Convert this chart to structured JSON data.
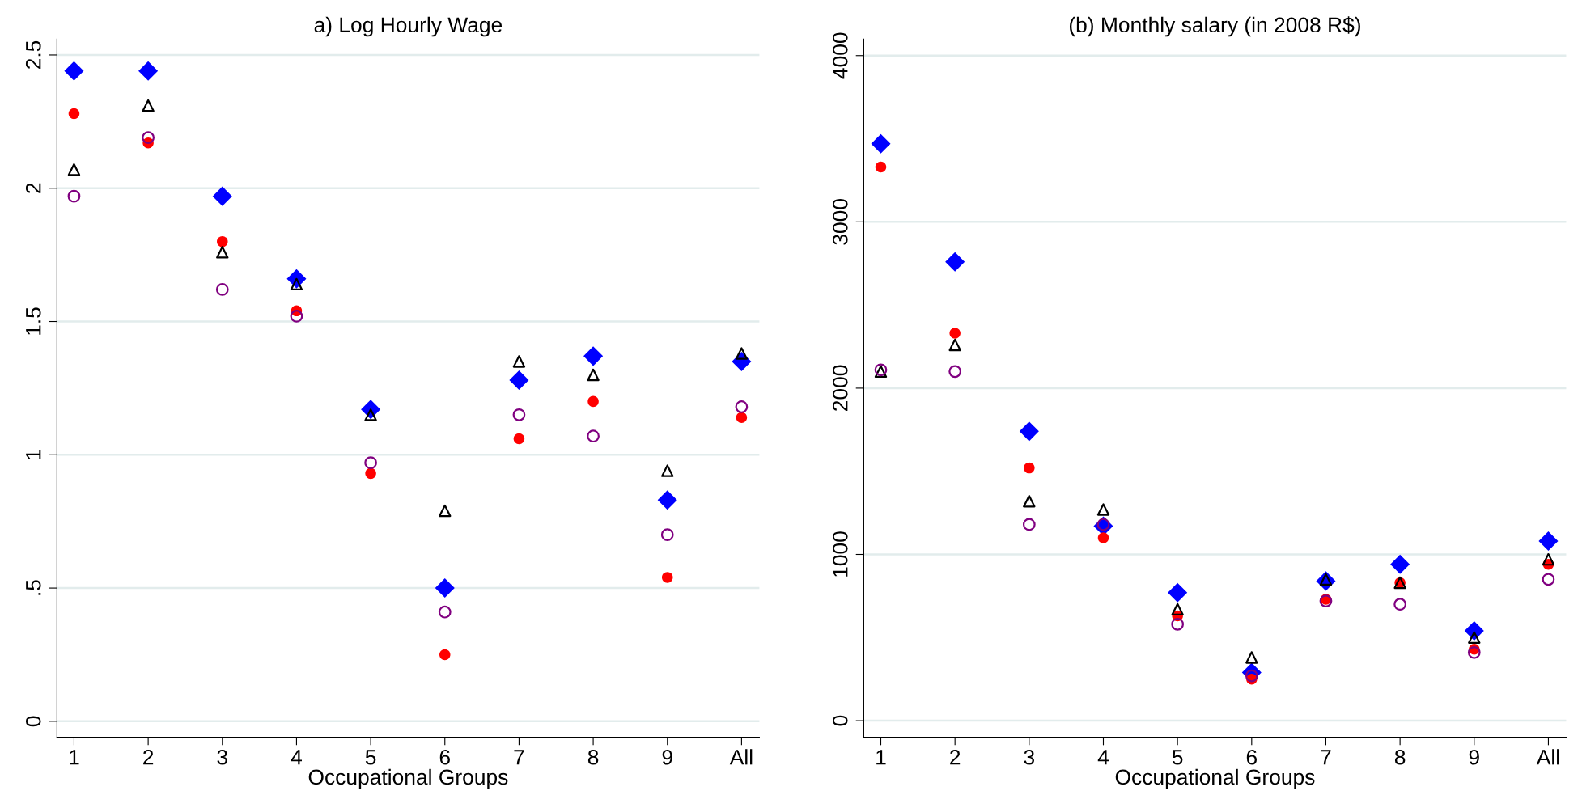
{
  "chart_data": [
    {
      "type": "scatter",
      "title": "a) Log Hourly Wage",
      "xlabel": "Occupational Groups",
      "categories": [
        "1",
        "2",
        "3",
        "4",
        "5",
        "6",
        "7",
        "8",
        "9",
        "All"
      ],
      "ylim": [
        -0.06,
        2.56
      ],
      "yticks": [
        0,
        {
          "value": 0.5,
          "label": ".5"
        },
        1,
        1.5,
        2,
        2.5
      ],
      "grid": "y",
      "legend": false,
      "series": [
        {
          "color": "#800080",
          "marker": "circle",
          "values": [
            1.97,
            2.19,
            1.62,
            1.52,
            0.97,
            0.41,
            1.15,
            1.07,
            0.7,
            1.18
          ]
        },
        {
          "color": "#000000",
          "marker": "triangle",
          "values": [
            2.07,
            2.31,
            1.76,
            1.64,
            1.15,
            0.79,
            1.35,
            1.3,
            0.94,
            1.38
          ]
        },
        {
          "color": "#ff0000",
          "marker": "circle",
          "values": [
            2.28,
            2.17,
            1.8,
            1.54,
            0.93,
            0.25,
            1.06,
            1.2,
            0.54,
            1.14
          ]
        },
        {
          "color": "#0000ff",
          "marker": "diamond",
          "values": [
            2.44,
            2.44,
            1.97,
            1.66,
            1.17,
            0.5,
            1.28,
            1.37,
            0.83,
            1.35
          ]
        }
      ]
    },
    {
      "type": "scatter",
      "title": "(b) Monthly salary (in 2008 R$)",
      "xlabel": "Occupational Groups",
      "categories": [
        "1",
        "2",
        "3",
        "4",
        "5",
        "6",
        "7",
        "8",
        "9",
        "All"
      ],
      "ylim": [
        -100,
        4100
      ],
      "yticks": [
        0,
        1000,
        2000,
        3000,
        4000
      ],
      "grid": "y",
      "legend": false,
      "series": [
        {
          "color": "#800080",
          "marker": "circle",
          "values": [
            2110,
            2100,
            1180,
            1180,
            580,
            270,
            720,
            700,
            410,
            850
          ]
        },
        {
          "color": "#000000",
          "marker": "triangle",
          "values": [
            2100,
            2260,
            1320,
            1270,
            670,
            380,
            850,
            830,
            500,
            970
          ]
        },
        {
          "color": "#ff0000",
          "marker": "circle",
          "values": [
            3330,
            2330,
            1520,
            1100,
            630,
            250,
            730,
            830,
            430,
            940
          ]
        },
        {
          "color": "#0000ff",
          "marker": "diamond",
          "values": [
            3470,
            2760,
            1740,
            1170,
            770,
            290,
            840,
            940,
            540,
            1080
          ]
        }
      ]
    }
  ]
}
